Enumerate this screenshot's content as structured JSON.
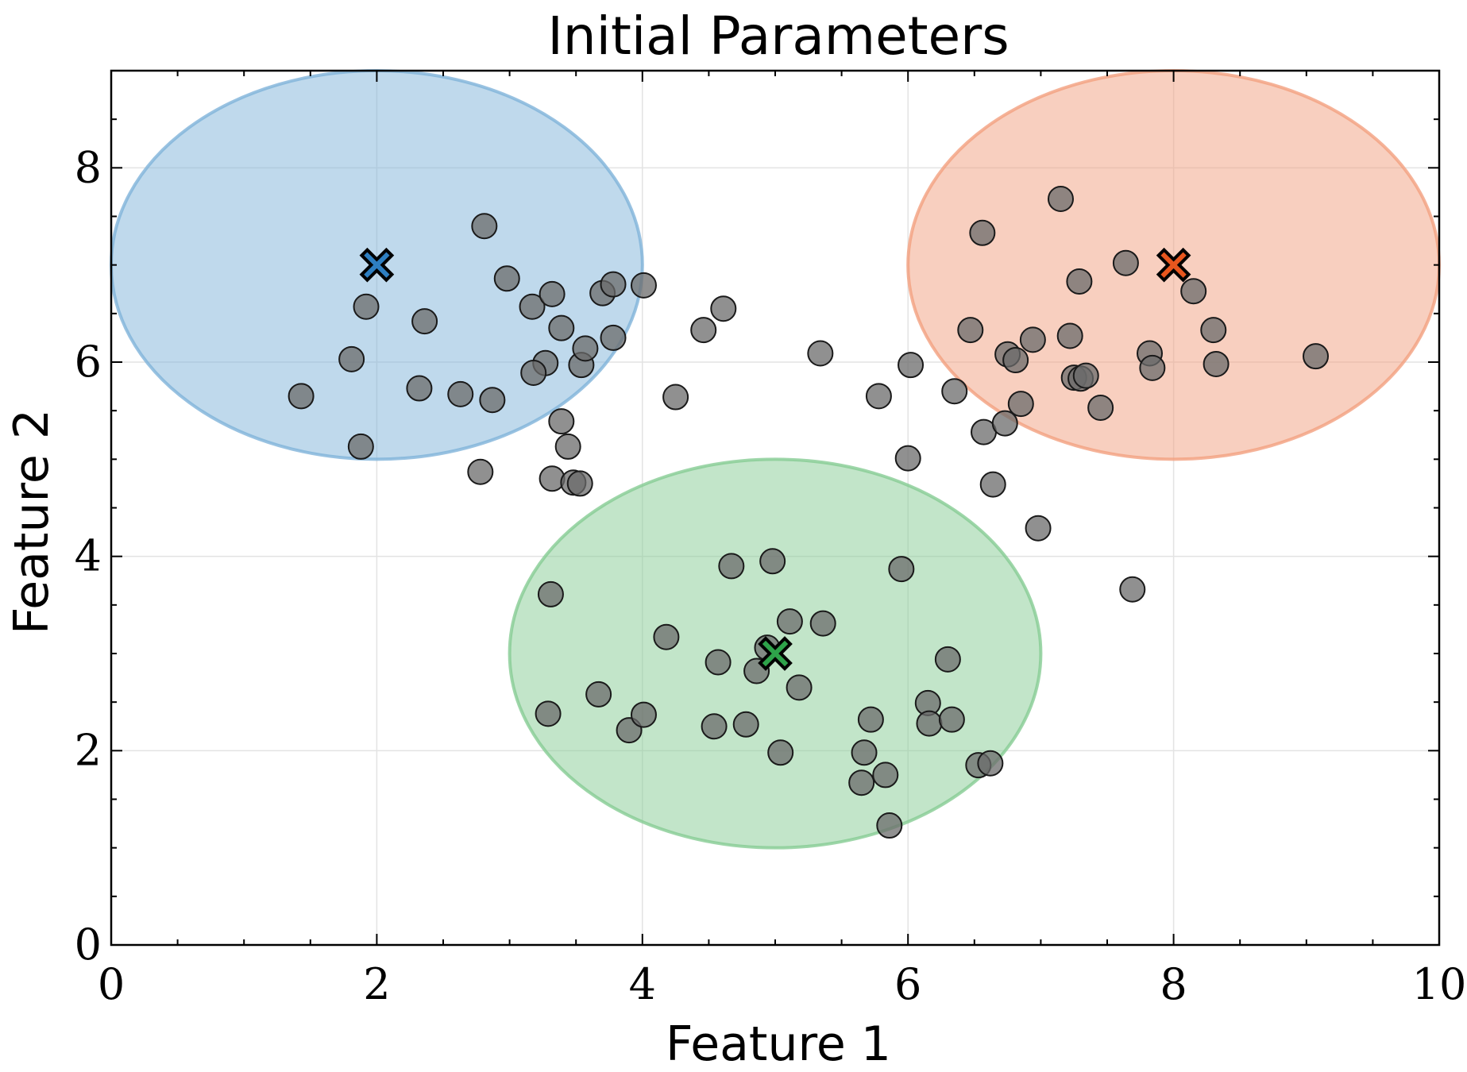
{
  "chart_data": {
    "type": "scatter",
    "title": "Initial Parameters",
    "xlabel": "Feature 1",
    "ylabel": "Feature 2",
    "xlim": [
      0,
      10
    ],
    "ylim": [
      0,
      9
    ],
    "xticks": [
      0,
      2,
      4,
      6,
      8,
      10
    ],
    "yticks": [
      0,
      2,
      4,
      6,
      8
    ],
    "xtick_labels": [
      "0",
      "2",
      "4",
      "6",
      "8",
      "10"
    ],
    "ytick_labels": [
      "0",
      "2",
      "4",
      "6",
      "8"
    ],
    "grid": true,
    "point_color": "#6b6b6b",
    "ellipses": [
      {
        "center": [
          2,
          7
        ],
        "rx": 2,
        "ry": 2,
        "color": "#7fb3d9"
      },
      {
        "center": [
          8,
          7
        ],
        "rx": 2,
        "ry": 2,
        "color": "#f2a07f"
      },
      {
        "center": [
          5,
          3
        ],
        "rx": 2,
        "ry": 2,
        "color": "#86cc93"
      }
    ],
    "centroids": [
      {
        "x": 2,
        "y": 7,
        "color": "#2e7fc1"
      },
      {
        "x": 8,
        "y": 7,
        "color": "#e8561e"
      },
      {
        "x": 5,
        "y": 3,
        "color": "#2ea34a"
      }
    ],
    "points": [
      [
        1.43,
        5.65
      ],
      [
        1.81,
        6.03
      ],
      [
        1.92,
        6.57
      ],
      [
        1.88,
        5.13
      ],
      [
        2.36,
        6.42
      ],
      [
        2.32,
        5.73
      ],
      [
        2.63,
        5.67
      ],
      [
        2.81,
        7.4
      ],
      [
        2.87,
        5.61
      ],
      [
        2.98,
        6.86
      ],
      [
        3.17,
        6.57
      ],
      [
        3.32,
        6.7
      ],
      [
        3.39,
        6.35
      ],
      [
        3.27,
        5.99
      ],
      [
        3.18,
        5.89
      ],
      [
        3.54,
        5.97
      ],
      [
        3.57,
        6.14
      ],
      [
        3.7,
        6.71
      ],
      [
        3.78,
        6.8
      ],
      [
        3.78,
        6.25
      ],
      [
        4.01,
        6.79
      ],
      [
        2.78,
        4.87
      ],
      [
        3.39,
        5.39
      ],
      [
        3.44,
        5.13
      ],
      [
        3.32,
        4.8
      ],
      [
        3.48,
        4.76
      ],
      [
        3.53,
        4.75
      ],
      [
        4.25,
        5.64
      ],
      [
        4.46,
        6.33
      ],
      [
        4.61,
        6.55
      ],
      [
        5.34,
        6.09
      ],
      [
        5.78,
        5.65
      ],
      [
        6.02,
        5.97
      ],
      [
        6.0,
        5.01
      ],
      [
        6.35,
        5.7
      ],
      [
        6.56,
        7.33
      ],
      [
        6.47,
        6.33
      ],
      [
        6.57,
        5.28
      ],
      [
        6.64,
        4.74
      ],
      [
        6.73,
        5.37
      ],
      [
        6.75,
        6.08
      ],
      [
        6.81,
        6.02
      ],
      [
        6.85,
        5.57
      ],
      [
        6.94,
        6.23
      ],
      [
        6.98,
        4.29
      ],
      [
        7.15,
        7.68
      ],
      [
        7.22,
        6.27
      ],
      [
        7.29,
        6.83
      ],
      [
        7.25,
        5.84
      ],
      [
        7.3,
        5.83
      ],
      [
        7.34,
        5.86
      ],
      [
        7.45,
        5.53
      ],
      [
        7.64,
        7.02
      ],
      [
        7.82,
        6.09
      ],
      [
        7.84,
        5.94
      ],
      [
        8.15,
        6.73
      ],
      [
        8.3,
        6.33
      ],
      [
        8.32,
        5.98
      ],
      [
        9.07,
        6.06
      ],
      [
        7.69,
        3.66
      ],
      [
        3.31,
        3.61
      ],
      [
        3.29,
        2.38
      ],
      [
        3.67,
        2.58
      ],
      [
        3.9,
        2.21
      ],
      [
        4.01,
        2.37
      ],
      [
        4.18,
        3.17
      ],
      [
        4.54,
        2.25
      ],
      [
        4.57,
        2.91
      ],
      [
        4.67,
        3.9
      ],
      [
        4.78,
        2.27
      ],
      [
        4.86,
        2.82
      ],
      [
        4.94,
        3.06
      ],
      [
        4.98,
        3.95
      ],
      [
        5.04,
        1.98
      ],
      [
        5.11,
        3.33
      ],
      [
        5.18,
        2.65
      ],
      [
        5.36,
        3.31
      ],
      [
        5.65,
        1.67
      ],
      [
        5.67,
        1.98
      ],
      [
        5.72,
        2.32
      ],
      [
        5.83,
        1.75
      ],
      [
        5.86,
        1.23
      ],
      [
        5.95,
        3.87
      ],
      [
        6.15,
        2.49
      ],
      [
        6.16,
        2.28
      ],
      [
        6.3,
        2.94
      ],
      [
        6.33,
        2.32
      ],
      [
        6.53,
        1.85
      ],
      [
        6.62,
        1.87
      ]
    ]
  }
}
